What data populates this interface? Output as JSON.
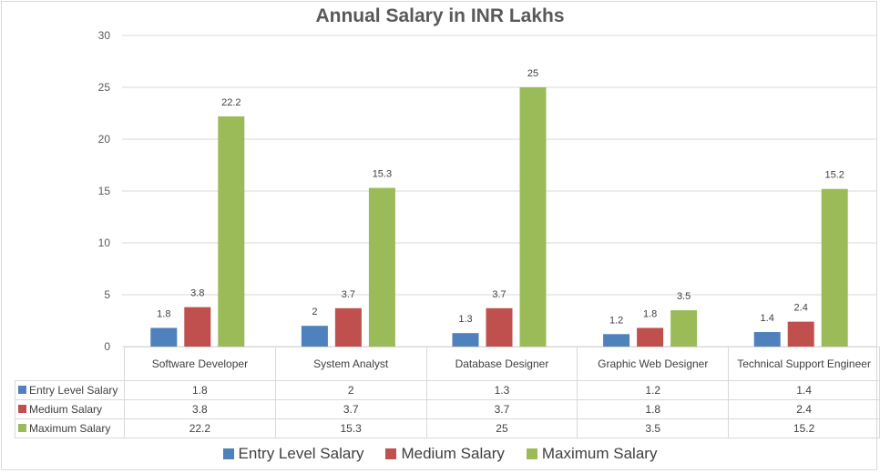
{
  "chart_data": {
    "type": "bar",
    "title": "Annual Salary in INR Lakhs",
    "xlabel": "",
    "ylabel": "",
    "ylim": [
      0,
      30
    ],
    "yticks": [
      0,
      5,
      10,
      15,
      20,
      25,
      30
    ],
    "grid": true,
    "legend_position": "bottom",
    "categories": [
      "Software Developer",
      "System Analyst",
      "Database Designer",
      "Graphic Web Designer",
      "Technical Support Engineer"
    ],
    "series": [
      {
        "name": "Entry Level Salary",
        "color": "#4f81bd",
        "values": [
          1.8,
          2,
          1.3,
          1.2,
          1.4
        ]
      },
      {
        "name": "Medium Salary",
        "color": "#c0504d",
        "values": [
          3.8,
          3.7,
          3.7,
          1.8,
          2.4
        ]
      },
      {
        "name": "Maximum Salary",
        "color": "#9bbb59",
        "values": [
          22.2,
          15.3,
          25,
          3.5,
          15.2
        ]
      }
    ],
    "data_labels": true,
    "data_table": true
  }
}
